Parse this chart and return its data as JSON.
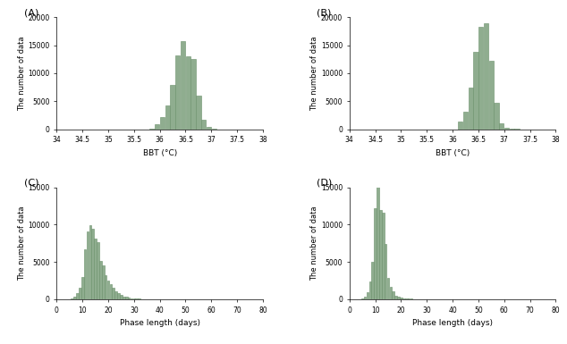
{
  "panel_A": {
    "label": "(A)",
    "xlabel": "BBT (°C)",
    "ylabel": "The number of data",
    "xlim": [
      34,
      38
    ],
    "ylim": [
      0,
      20000
    ],
    "xticks": [
      34,
      34.5,
      35,
      35.5,
      36,
      36.5,
      37,
      37.5,
      38
    ],
    "yticks": [
      0,
      5000,
      10000,
      15000,
      20000
    ],
    "bar_centers": [
      35.85,
      35.95,
      36.05,
      36.15,
      36.25,
      36.35,
      36.45,
      36.55,
      36.65,
      36.75,
      36.85,
      36.95,
      37.05
    ],
    "bar_heights": [
      100,
      900,
      2200,
      4200,
      7900,
      13100,
      15800,
      13000,
      12500,
      6000,
      1700,
      350,
      50
    ],
    "bar_width": 0.1,
    "bar_color": "#8fad8f",
    "bar_edge_color": "#6a8f6a"
  },
  "panel_B": {
    "label": "(B)",
    "xlabel": "BBT (°C)",
    "ylabel": "The number of data",
    "xlim": [
      34,
      38
    ],
    "ylim": [
      0,
      20000
    ],
    "xticks": [
      34,
      34.5,
      35,
      35.5,
      36,
      36.5,
      37,
      37.5,
      38
    ],
    "yticks": [
      0,
      5000,
      10000,
      15000,
      20000
    ],
    "bar_centers": [
      36.15,
      36.25,
      36.35,
      36.45,
      36.55,
      36.65,
      36.75,
      36.85,
      36.95,
      37.05,
      37.15,
      37.25
    ],
    "bar_heights": [
      1400,
      3100,
      7500,
      13800,
      18300,
      18900,
      12200,
      4700,
      1100,
      200,
      50,
      10
    ],
    "bar_width": 0.1,
    "bar_color": "#8fad8f",
    "bar_edge_color": "#6a8f6a"
  },
  "panel_C": {
    "label": "(C)",
    "xlabel": "Phase length (days)",
    "ylabel": "The number of data",
    "xlim": [
      0,
      80
    ],
    "ylim": [
      0,
      15000
    ],
    "xticks": [
      0,
      10,
      20,
      30,
      40,
      50,
      60,
      70,
      80
    ],
    "yticks": [
      0,
      5000,
      10000,
      15000
    ],
    "bar_centers": [
      5,
      6,
      7,
      8,
      9,
      10,
      11,
      12,
      13,
      14,
      15,
      16,
      17,
      18,
      19,
      20,
      21,
      22,
      23,
      24,
      25,
      26,
      27,
      28,
      29,
      30,
      31,
      32,
      33,
      34,
      35,
      36,
      37,
      38,
      39,
      40,
      41,
      42,
      43,
      44,
      45,
      50,
      55,
      60,
      65,
      70
    ],
    "bar_heights": [
      50,
      150,
      350,
      800,
      1500,
      3000,
      6700,
      9100,
      9900,
      9500,
      8100,
      7700,
      5200,
      4500,
      3200,
      2500,
      2000,
      1500,
      1100,
      800,
      600,
      400,
      300,
      200,
      150,
      100,
      80,
      60,
      40,
      30,
      20,
      15,
      10,
      8,
      5,
      4,
      3,
      3,
      2,
      2,
      2,
      2,
      1,
      2,
      1,
      1
    ],
    "bar_width": 1,
    "bar_color": "#8fad8f",
    "bar_edge_color": "#6a8f6a"
  },
  "panel_D": {
    "label": "(D)",
    "xlabel": "Phase length (days)",
    "ylabel": "The number of data",
    "xlim": [
      0,
      80
    ],
    "ylim": [
      0,
      15000
    ],
    "xticks": [
      0,
      10,
      20,
      30,
      40,
      50,
      60,
      70,
      80
    ],
    "yticks": [
      0,
      5000,
      10000,
      15000
    ],
    "bar_centers": [
      5,
      6,
      7,
      8,
      9,
      10,
      11,
      12,
      13,
      14,
      15,
      16,
      17,
      18,
      19,
      20,
      21,
      22,
      23,
      24,
      25,
      26,
      27,
      28,
      29,
      30,
      35,
      40,
      45,
      50,
      55,
      60,
      65,
      70
    ],
    "bar_heights": [
      100,
      400,
      1000,
      2400,
      5000,
      12200,
      15800,
      12000,
      11600,
      7400,
      2900,
      1700,
      1050,
      500,
      300,
      200,
      150,
      100,
      80,
      60,
      40,
      30,
      20,
      15,
      10,
      8,
      4,
      2,
      2,
      2,
      1,
      1,
      1,
      1
    ],
    "bar_width": 1,
    "bar_color": "#8fad8f",
    "bar_edge_color": "#6a8f6a"
  }
}
